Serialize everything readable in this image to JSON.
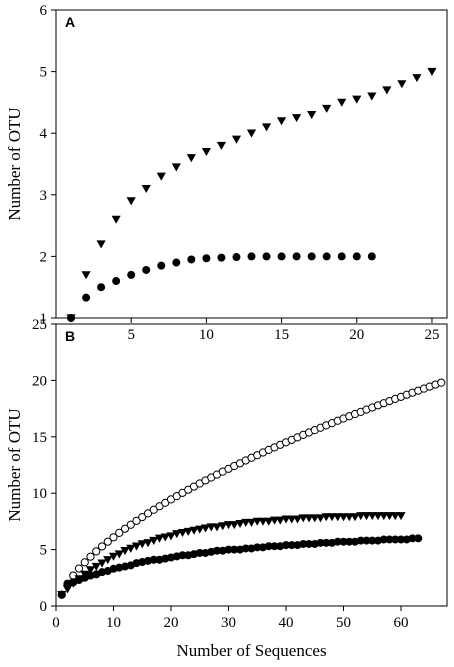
{
  "chart_data": [
    {
      "type": "scatter",
      "panel": "A",
      "xlim": [
        0,
        26
      ],
      "ylim": [
        1,
        6
      ],
      "xticks": [
        5,
        10,
        15,
        20,
        25
      ],
      "yticks": [
        1,
        2,
        3,
        4,
        5,
        6
      ],
      "xlabel": "",
      "ylabel": "Number of OTU",
      "grid": false,
      "series": [
        {
          "marker": "filled-down-triangle",
          "x": [
            1,
            2,
            3,
            4,
            5,
            6,
            7,
            8,
            9,
            10,
            11,
            12,
            13,
            14,
            15,
            16,
            17,
            18,
            19,
            20,
            21,
            22,
            23,
            24,
            25
          ],
          "y": [
            1.0,
            1.7,
            2.2,
            2.6,
            2.9,
            3.1,
            3.3,
            3.45,
            3.6,
            3.7,
            3.8,
            3.9,
            4.0,
            4.1,
            4.2,
            4.25,
            4.3,
            4.4,
            4.5,
            4.55,
            4.6,
            4.7,
            4.8,
            4.9,
            5.0
          ]
        },
        {
          "marker": "filled-circle",
          "x": [
            1,
            2,
            3,
            4,
            5,
            6,
            7,
            8,
            9,
            10,
            11,
            12,
            13,
            14,
            15,
            16,
            17,
            18,
            19,
            20,
            21
          ],
          "y": [
            1.0,
            1.33,
            1.5,
            1.6,
            1.7,
            1.78,
            1.85,
            1.9,
            1.95,
            1.97,
            1.98,
            1.99,
            2.0,
            2.0,
            2.0,
            2.0,
            2.0,
            2.0,
            2.0,
            2.0,
            2.0
          ]
        }
      ]
    },
    {
      "type": "scatter",
      "panel": "B",
      "xlim": [
        0,
        68
      ],
      "ylim": [
        0,
        25
      ],
      "xticks": [
        0,
        10,
        20,
        30,
        40,
        50,
        60
      ],
      "yticks": [
        0,
        5,
        10,
        15,
        20,
        25
      ],
      "xlabel": "Number of Sequences",
      "ylabel": "Number of OTU",
      "grid": false,
      "series": [
        {
          "marker": "open-circle",
          "curve": {
            "a": 1.25,
            "b": 0.66,
            "x_from": 1,
            "x_to": 67,
            "y0": 1
          },
          "x": [
            1,
            2,
            3,
            4,
            5,
            6,
            7,
            8,
            9,
            10,
            11,
            12,
            13,
            14,
            15,
            16,
            17,
            18,
            19,
            20,
            21,
            22,
            23,
            24,
            25,
            26,
            27,
            28,
            29,
            30,
            31,
            32,
            33,
            34,
            35,
            36,
            37,
            38,
            39,
            40,
            41,
            42,
            43,
            44,
            45,
            46,
            47,
            48,
            49,
            50,
            51,
            52,
            53,
            54,
            55,
            56,
            57,
            58,
            59,
            60,
            61,
            62,
            63,
            64,
            65,
            66,
            67
          ],
          "y": [
            1.0,
            1.98,
            2.7,
            3.32,
            3.87,
            4.37,
            4.84,
            5.28,
            5.7,
            6.09,
            6.48,
            6.85,
            7.2,
            7.55,
            7.88,
            8.21,
            8.53,
            8.84,
            9.15,
            9.45,
            9.74,
            10.03,
            10.31,
            10.59,
            10.86,
            11.13,
            11.39,
            11.65,
            11.91,
            12.16,
            12.41,
            12.65,
            12.9,
            13.14,
            13.37,
            13.61,
            13.84,
            14.06,
            14.29,
            14.51,
            14.73,
            14.95,
            15.17,
            15.38,
            15.59,
            15.8,
            16.01,
            16.21,
            16.42,
            16.62,
            16.82,
            17.02,
            17.21,
            17.41,
            17.6,
            17.79,
            17.98,
            18.17,
            18.36,
            18.54,
            18.73,
            18.91,
            19.09,
            19.27,
            19.45,
            19.63,
            19.8
          ]
        },
        {
          "marker": "filled-down-triangle",
          "curve": {
            "asymptote": 8.3,
            "k": 0.07,
            "x_from": 1,
            "x_to": 60,
            "y0": 1
          },
          "x": [
            1,
            2,
            3,
            4,
            5,
            6,
            7,
            8,
            9,
            10,
            11,
            12,
            13,
            14,
            15,
            16,
            17,
            18,
            19,
            20,
            21,
            22,
            23,
            24,
            25,
            26,
            27,
            28,
            29,
            30,
            31,
            32,
            33,
            34,
            35,
            36,
            37,
            38,
            39,
            40,
            41,
            42,
            43,
            44,
            45,
            46,
            47,
            48,
            49,
            50,
            51,
            52,
            53,
            54,
            55,
            56,
            57,
            58,
            59,
            60
          ],
          "y": [
            1.0,
            1.5,
            2.0,
            2.4,
            2.8,
            3.2,
            3.5,
            3.8,
            4.1,
            4.4,
            4.6,
            4.9,
            5.1,
            5.3,
            5.5,
            5.6,
            5.8,
            6.0,
            6.1,
            6.2,
            6.4,
            6.5,
            6.6,
            6.7,
            6.8,
            6.9,
            7.0,
            7.0,
            7.1,
            7.2,
            7.2,
            7.3,
            7.4,
            7.4,
            7.5,
            7.5,
            7.5,
            7.6,
            7.6,
            7.7,
            7.7,
            7.7,
            7.8,
            7.8,
            7.8,
            7.8,
            7.9,
            7.9,
            7.9,
            7.9,
            7.9,
            7.9,
            8.0,
            8.0,
            8.0,
            8.0,
            8.0,
            8.0,
            8.0,
            8.0
          ]
        },
        {
          "marker": "filled-circle",
          "curve": {
            "asymptote": 6.3,
            "k": 0.045,
            "x_from": 1,
            "x_to": 63,
            "y0": 1
          },
          "x": [
            1,
            2,
            3,
            4,
            5,
            6,
            7,
            8,
            9,
            10,
            11,
            12,
            13,
            14,
            15,
            16,
            17,
            18,
            19,
            20,
            21,
            22,
            23,
            24,
            25,
            26,
            27,
            28,
            29,
            30,
            31,
            32,
            33,
            34,
            35,
            36,
            37,
            38,
            39,
            40,
            41,
            42,
            43,
            44,
            45,
            46,
            47,
            48,
            49,
            50,
            51,
            52,
            53,
            54,
            55,
            56,
            57,
            58,
            59,
            60,
            61,
            62,
            63
          ],
          "y": [
            1.0,
            1.9,
            2.1,
            2.3,
            2.5,
            2.7,
            2.8,
            3.0,
            3.1,
            3.3,
            3.4,
            3.5,
            3.6,
            3.8,
            3.9,
            4.0,
            4.1,
            4.1,
            4.2,
            4.3,
            4.4,
            4.5,
            4.5,
            4.6,
            4.7,
            4.7,
            4.8,
            4.9,
            4.9,
            5.0,
            5.0,
            5.0,
            5.1,
            5.1,
            5.2,
            5.2,
            5.3,
            5.3,
            5.3,
            5.4,
            5.4,
            5.4,
            5.5,
            5.5,
            5.5,
            5.6,
            5.6,
            5.6,
            5.7,
            5.7,
            5.7,
            5.7,
            5.8,
            5.8,
            5.8,
            5.8,
            5.9,
            5.9,
            5.9,
            5.9,
            5.9,
            6.0,
            6.0
          ]
        }
      ]
    }
  ]
}
